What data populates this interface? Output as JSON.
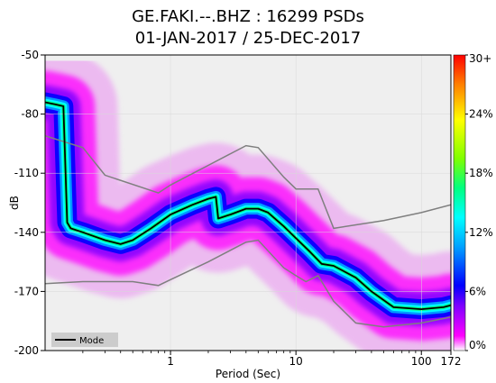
{
  "chart_data": {
    "type": "heatmap",
    "title_line1": "GE.FAKI.--.BHZ : 16299 PSDs",
    "title_line2": "01-JAN-2017 / 25-DEC-2017",
    "xlabel": "Period (Sec)",
    "ylabel": "dB",
    "x_scale": "log",
    "xlim": [
      0.1,
      172
    ],
    "ylim": [
      -200,
      -50
    ],
    "x_ticks": [
      {
        "value": 1,
        "label": "1"
      },
      {
        "value": 10,
        "label": "10"
      },
      {
        "value": 100,
        "label": "100"
      },
      {
        "value": 172,
        "label": "172"
      }
    ],
    "y_ticks": [
      {
        "value": -50,
        "label": "-50"
      },
      {
        "value": -80,
        "label": "-80"
      },
      {
        "value": -110,
        "label": "-110"
      },
      {
        "value": -140,
        "label": "-140"
      },
      {
        "value": -170,
        "label": "-170"
      },
      {
        "value": -200,
        "label": "-200"
      }
    ],
    "colorbar": {
      "ticks": [
        {
          "value": 0,
          "label": "0%"
        },
        {
          "value": 6,
          "label": "6%"
        },
        {
          "value": 12,
          "label": "12%"
        },
        {
          "value": 18,
          "label": "18%"
        },
        {
          "value": 24,
          "label": "24%"
        },
        {
          "value": 30,
          "label": "30+"
        }
      ],
      "range": [
        0,
        30
      ],
      "colors": [
        "#ffffff",
        "#ff00ff",
        "#8000ff",
        "#0000ff",
        "#00a0ff",
        "#00ffff",
        "#00ff80",
        "#80ff00",
        "#ffff00",
        "#ff8000",
        "#ff0000"
      ]
    },
    "legend": {
      "position": "bottom-left",
      "entries": [
        {
          "label": "Mode",
          "color": "#000000"
        }
      ]
    },
    "series": [
      {
        "name": "Mode",
        "color": "#000000",
        "x": [
          0.1,
          0.12,
          0.14,
          0.15,
          0.16,
          0.2,
          0.3,
          0.4,
          0.5,
          0.7,
          1.0,
          1.5,
          2.0,
          2.3,
          2.4,
          3.0,
          4.0,
          5.0,
          6.0,
          8.0,
          10,
          13,
          16,
          20,
          30,
          40,
          60,
          100,
          150,
          172
        ],
        "y": [
          -74,
          -75,
          -76,
          -135,
          -138,
          -140,
          -144,
          -146,
          -144,
          -138,
          -131,
          -126,
          -123,
          -122,
          -133,
          -131,
          -128,
          -128,
          -130,
          -137,
          -143,
          -150,
          -156,
          -157,
          -163,
          -170,
          -178,
          -179,
          -178,
          -177
        ]
      },
      {
        "name": "",
        "color": "#7f7f7f",
        "x": [
          0.1,
          0.2,
          0.3,
          0.8,
          1.0,
          2.0,
          4.0,
          5.0,
          8.0,
          10,
          15,
          20,
          50,
          100,
          172
        ],
        "y": [
          -91,
          -97,
          -111,
          -120,
          -116,
          -106,
          -96,
          -97,
          -112,
          -118,
          -118,
          -138,
          -134,
          -130,
          -126
        ]
      },
      {
        "name": "",
        "color": "#7f7f7f",
        "x": [
          0.1,
          0.2,
          0.3,
          0.5,
          0.8,
          1.0,
          2.0,
          4.0,
          5.0,
          8.0,
          10,
          12,
          15,
          20,
          30,
          50,
          100,
          172
        ],
        "y": [
          -166,
          -165,
          -165,
          -165,
          -167,
          -164,
          -155,
          -145,
          -144,
          -158,
          -162,
          -165,
          -162,
          -175,
          -186,
          -188,
          -186,
          -183
        ]
      }
    ]
  }
}
